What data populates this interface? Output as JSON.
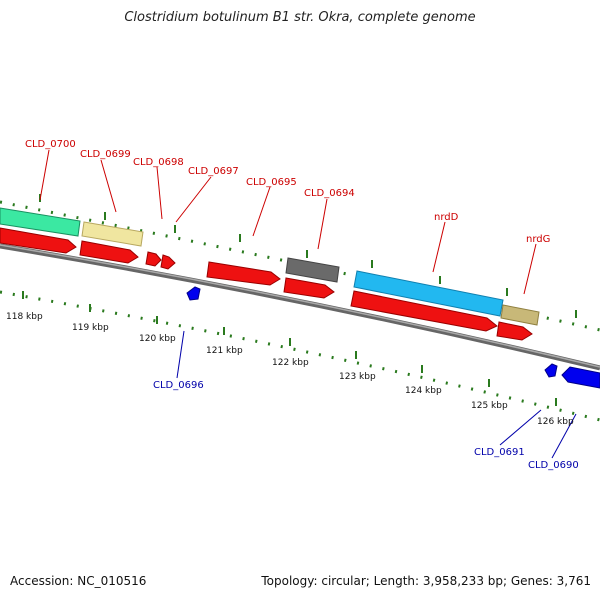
{
  "title": "Clostridium botulinum B1 str. Okra, complete genome",
  "footer": {
    "accession": "Accession: NC_010516",
    "topology": "Topology: circular; Length: 3,958,233 bp; Genes: 3,761"
  },
  "colors": {
    "forward_label": "#cc0000",
    "reverse_label": "#0000aa",
    "tick": "#2a7a1e",
    "backbone": "#808080",
    "forward_cds": "#ee0000",
    "reverse_cds": "#0000ee"
  },
  "kbp_labels": [
    "118 kbp",
    "119 kbp",
    "120 kbp",
    "121 kbp",
    "122 kbp",
    "123 kbp",
    "124 kbp",
    "125 kbp",
    "126 kbp"
  ],
  "gene_labels": [
    {
      "text": "CLD_0700",
      "strand": "forward"
    },
    {
      "text": "CLD_0699",
      "strand": "forward"
    },
    {
      "text": "CLD_0698",
      "strand": "forward"
    },
    {
      "text": "CLD_0697",
      "strand": "forward"
    },
    {
      "text": "CLD_0695",
      "strand": "forward"
    },
    {
      "text": "CLD_0694",
      "strand": "forward"
    },
    {
      "text": "nrdD",
      "strand": "forward"
    },
    {
      "text": "nrdG",
      "strand": "forward"
    },
    {
      "text": "CLD_0696",
      "strand": "reverse"
    },
    {
      "text": "CLD_0691",
      "strand": "reverse"
    },
    {
      "text": "CLD_0690",
      "strand": "reverse"
    }
  ]
}
